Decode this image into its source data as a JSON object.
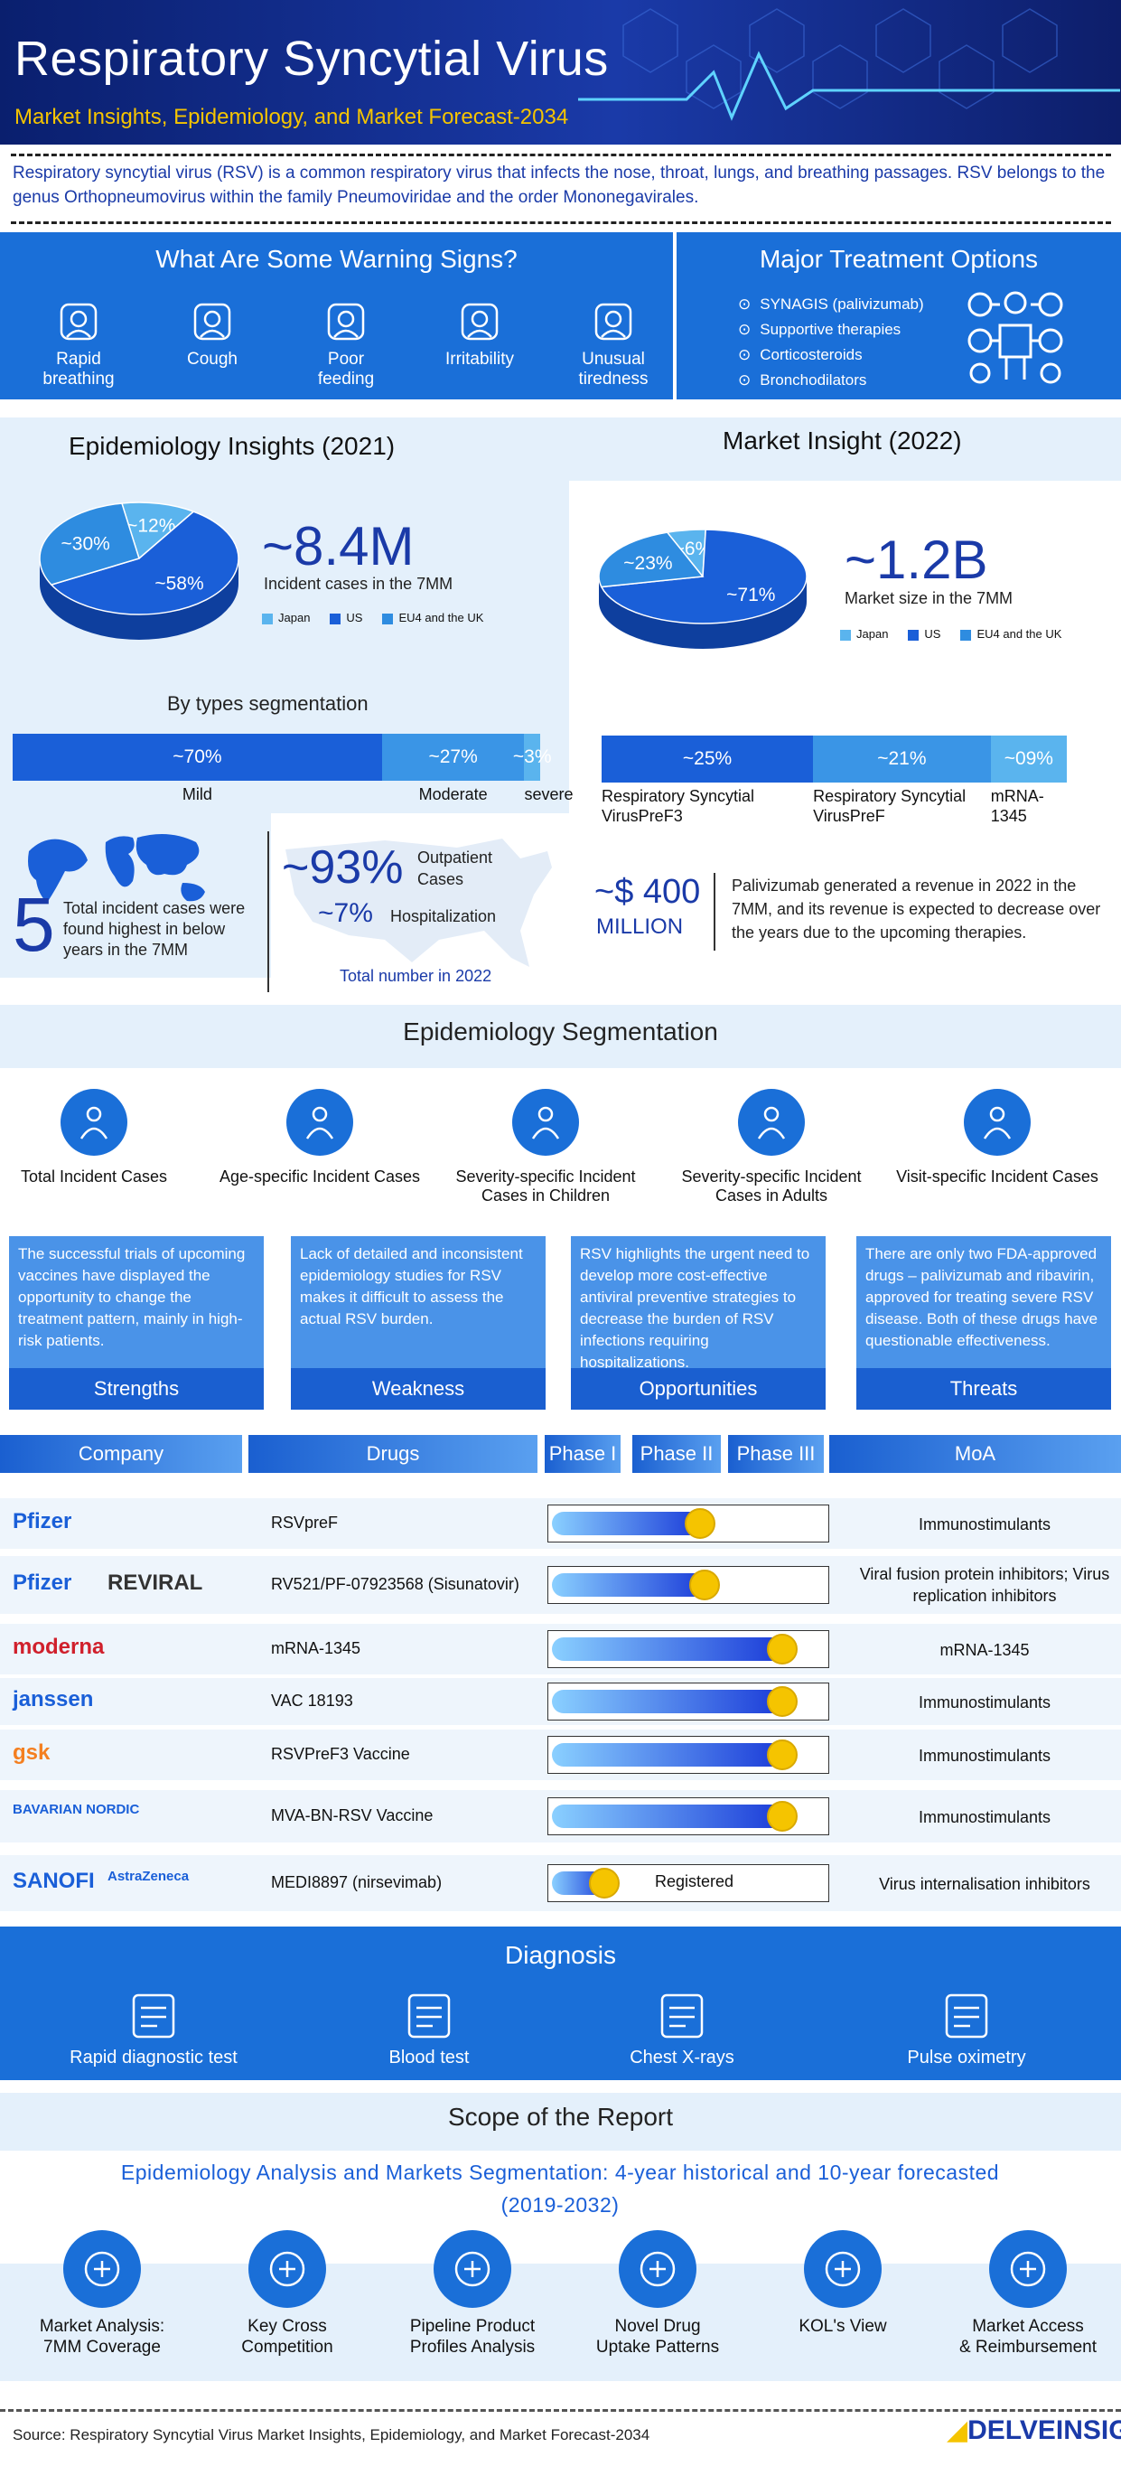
{
  "header": {
    "title": "Respiratory Syncytial Virus",
    "subtitle": "Market Insights, Epidemiology, and Market Forecast-2034"
  },
  "intro": "Respiratory syncytial virus (RSV) is a common respiratory virus that infects the nose, throat, lungs, and breathing passages. RSV belongs to the genus Orthopneumovirus within the family Pneumoviridae and the order Mononegavirales.",
  "warning": {
    "title": "What Are Some Warning Signs?",
    "items": [
      {
        "label": "Rapid\nbreathing",
        "icon": "lungs-icon"
      },
      {
        "label": "Cough",
        "icon": "cough-icon"
      },
      {
        "label": "Poor\nfeeding",
        "icon": "stomach-icon"
      },
      {
        "label": "Irritability",
        "icon": "irritability-icon"
      },
      {
        "label": "Unusual\ntiredness",
        "icon": "tiredness-icon"
      }
    ]
  },
  "treatment": {
    "title": "Major Treatment Options",
    "items": [
      "SYNAGIS (palivizumab)",
      "Supportive therapies",
      "Corticosteroids",
      "Bronchodilators"
    ]
  },
  "epi": {
    "title": "Epidemiology Insights (2021)",
    "pie": {
      "slices": [
        {
          "label": "Japan",
          "value": 12,
          "text": "~12%"
        },
        {
          "label": "US",
          "value": 58,
          "text": "~58%"
        },
        {
          "label": "EU4 and the UK",
          "value": 30,
          "text": "~30%"
        }
      ]
    },
    "big": "~8.4M",
    "big_caption": "Incident cases in the 7MM",
    "seg_title": "By types segmentation",
    "segments": [
      {
        "value": 70,
        "text": "~70%",
        "label": "Mild"
      },
      {
        "value": 27,
        "text": "~27%",
        "label": "Moderate"
      },
      {
        "value": 3,
        "text": "~3%",
        "label": "severe"
      }
    ],
    "five": "5",
    "five_text": "Total incident cases were found highest in below years in the 7MM",
    "outpatient_pct": "~93%",
    "outpatient_lbl": "Outpatient Cases",
    "hosp_pct": "~7%",
    "hosp_lbl": "Hospitalization",
    "total_note": "Total number in 2022"
  },
  "market": {
    "title": "Market Insight (2022)",
    "pie": {
      "slices": [
        {
          "label": "Japan",
          "value": 6,
          "text": "~6%"
        },
        {
          "label": "US",
          "value": 71,
          "text": "~71%"
        },
        {
          "label": "EU4 and the UK",
          "value": 23,
          "text": "~23%"
        }
      ]
    },
    "big": "~1.2B",
    "big_caption": "Market size in the 7MM",
    "segments": [
      {
        "value": 25,
        "text": "~25%",
        "label": "Respiratory Syncytial VirusPreF3"
      },
      {
        "value": 21,
        "text": "~21%",
        "label": "Respiratory Syncytial VirusPreF"
      },
      {
        "value": 9,
        "text": "~09%",
        "label": "mRNA-1345"
      }
    ],
    "revenue": "~$ 400",
    "revenue_unit": "MILLION",
    "revenue_text": "Palivizumab generated a revenue in 2022 in the 7MM, and its revenue is expected to decrease over the years due to the upcoming therapies."
  },
  "epi_seg": {
    "title": "Epidemiology Segmentation",
    "items": [
      {
        "label": "Total Incident Cases",
        "icon": "people-icon"
      },
      {
        "label": "Age-specific Incident Cases",
        "icon": "family-icon"
      },
      {
        "label": "Severity-specific Incident Cases in Children",
        "icon": "medical-record-icon"
      },
      {
        "label": "Severity-specific Incident Cases in Adults",
        "icon": "adults-icon"
      },
      {
        "label": "Visit-specific Incident Cases",
        "icon": "visit-icon"
      }
    ]
  },
  "swot": [
    {
      "title": "Strengths",
      "text": "The successful trials of upcoming vaccines have displayed the opportunity to change the treatment pattern, mainly in high-risk patients."
    },
    {
      "title": "Weakness",
      "text": "Lack of detailed and inconsistent epidemiology studies for RSV makes it difficult to assess the actual RSV burden."
    },
    {
      "title": "Opportunities",
      "text": "RSV highlights the urgent need to develop more cost-effective antiviral preventive strategies to decrease the burden of RSV infections requiring hospitalizations."
    },
    {
      "title": "Threats",
      "text": "There are only two FDA-approved drugs – palivizumab and ribavirin, approved for treating severe RSV disease. Both of these drugs have questionable effectiveness."
    }
  ],
  "pipeline": {
    "headers": {
      "company": "Company",
      "drugs": "Drugs",
      "p1": "Phase I",
      "p2": "Phase II",
      "p3": "Phase III",
      "moa": "MoA"
    },
    "rows": [
      {
        "companies": [
          "Pfizer"
        ],
        "drug": "RSVpreF",
        "progress": 0.6,
        "moa": "Immunostimulants",
        "label": ""
      },
      {
        "companies": [
          "Pfizer",
          "REVIRAL"
        ],
        "drug": "RV521/PF-07923568 (Sisunatovir)",
        "progress": 0.62,
        "moa": "Viral fusion protein inhibitors; Virus replication inhibitors",
        "label": ""
      },
      {
        "companies": [
          "moderna"
        ],
        "drug": "mRNA-1345",
        "progress": 0.93,
        "moa": "mRNA-1345",
        "label": ""
      },
      {
        "companies": [
          "janssen"
        ],
        "drug": "VAC 18193",
        "progress": 0.93,
        "moa": "Immunostimulants",
        "label": ""
      },
      {
        "companies": [
          "gsk"
        ],
        "drug": "RSVPreF3 Vaccine",
        "progress": 0.93,
        "moa": "Immunostimulants",
        "label": ""
      },
      {
        "companies": [
          "BAVARIAN NORDIC"
        ],
        "drug": "MVA-BN-RSV Vaccine",
        "progress": 0.93,
        "moa": "Immunostimulants",
        "label": ""
      },
      {
        "companies": [
          "SANOFI",
          "AstraZeneca"
        ],
        "drug": "MEDI8897 (nirsevimab)",
        "progress": 0.22,
        "moa": "Virus internalisation inhibitors",
        "label": "Registered"
      }
    ]
  },
  "diagnosis": {
    "title": "Diagnosis",
    "items": [
      {
        "label": "Rapid diagnostic test",
        "icon": "test-tube-icon"
      },
      {
        "label": "Blood test",
        "icon": "blood-test-icon"
      },
      {
        "label": "Chest X-rays",
        "icon": "xray-icon"
      },
      {
        "label": "Pulse oximetry",
        "icon": "oximeter-icon"
      }
    ]
  },
  "scope": {
    "title": "Scope of the Report",
    "subtitle": "Epidemiology Analysis and Markets Segmentation: 4-year historical and 10-year forecasted (2019-2032)",
    "items": [
      {
        "label": "Market Analysis:\n7MM Coverage",
        "icon": "analysis-icon"
      },
      {
        "label": "Key Cross\nCompetition",
        "icon": "competition-icon"
      },
      {
        "label": "Pipeline Product\nProfiles Analysis",
        "icon": "pipeline-icon"
      },
      {
        "label": "Novel Drug\nUptake Patterns",
        "icon": "drug-icon"
      },
      {
        "label": "KOL's View",
        "icon": "kol-icon"
      },
      {
        "label": "Market Access\n& Reimbursement",
        "icon": "reimbursement-icon"
      }
    ]
  },
  "footer": {
    "source": "Source: Respiratory Syncytial Virus Market Insights, Epidemiology, and Market Forecast-2034",
    "brand": "DELVEINSIGHT"
  },
  "colors": {
    "japan": "#5ab4ee",
    "us": "#1a5fd8",
    "eu": "#2e8ce0",
    "accent": "#1a6fd8",
    "gold": "#f5c400"
  }
}
